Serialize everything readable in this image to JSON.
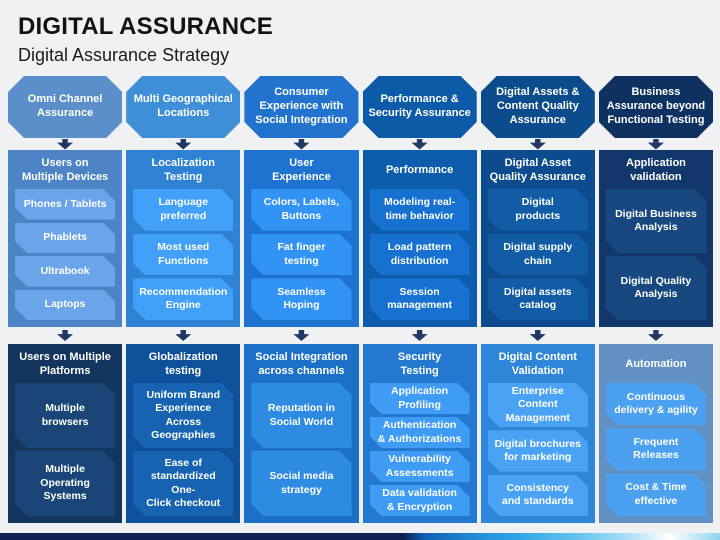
{
  "title": "DIGITAL ASSURANCE",
  "subtitle": "Digital Assurance Strategy",
  "arrow_color": "#1f3864",
  "background_color": "#f0f1f2",
  "footer_bar_colors": [
    "#0d2152",
    "#0d2152",
    "#1160b4",
    "#1f86d4",
    "#30a5e6",
    "#63c3ef",
    "#a8def7",
    "#ffffff",
    "#8fd3f0"
  ],
  "columns": [
    {
      "octagon_label": "Omni Channel\nAssurance",
      "octagon_color": "#5a8fca",
      "mid": {
        "title": "Users on\nMultiple Devices",
        "bg": "#4c84c5",
        "item_bg": "#6aa5ea",
        "items": [
          "Phones / Tablets",
          "Phablets",
          "Ultrabook",
          "Laptops"
        ]
      },
      "bottom": {
        "title": "Users on Multiple\nPlatforms",
        "bg": "#14355e",
        "item_bg": "#1c4577",
        "items": [
          "Multiple\nbrowsers",
          "Multiple Operating\nSystems"
        ]
      }
    },
    {
      "octagon_label": "Multi Geographical\nLocations",
      "octagon_color": "#3e8ed8",
      "mid": {
        "title": "Localization\nTesting",
        "bg": "#2f81d3",
        "item_bg": "#41a0f7",
        "items": [
          "Language\npreferred",
          "Most used\nFunctions",
          "Recommendation\nEngine"
        ]
      },
      "bottom": {
        "title": "Globalization\ntesting",
        "bg": "#0e509a",
        "item_bg": "#1763b2",
        "items": [
          "Uniform Brand\nExperience Across\nGeographies",
          "Ease of\nstandardized One-\nClick checkout"
        ]
      }
    },
    {
      "octagon_label": "Consumer\nExperience with\nSocial Integration",
      "octagon_color": "#2173ce",
      "mid": {
        "title": "User\nExperience",
        "bg": "#1e73d0",
        "item_bg": "#3193f3",
        "items": [
          "Colors, Labels,\nButtons",
          "Fat finger\ntesting",
          "Seamless\nHoping"
        ]
      },
      "bottom": {
        "title": "Social Integration\nacross channels",
        "bg": "#1c70c8",
        "item_bg": "#2e8be2",
        "items": [
          "Reputation in\nSocial World",
          "Social media\nstrategy"
        ]
      }
    },
    {
      "octagon_label": "Performance &\nSecurity Assurance",
      "octagon_color": "#0d5aa7",
      "mid": {
        "title": "Performance",
        "bg": "#0e5cac",
        "item_bg": "#1671d0",
        "items": [
          "Modeling real-\ntime behavior",
          "Load pattern\ndistribution",
          "Session\nmanagement"
        ]
      },
      "bottom": {
        "title": "Security\nTesting",
        "bg": "#2578d0",
        "item_bg": "#3e9cf4",
        "items": [
          "Application\nProfiling",
          "Authentication\n& Authorizations",
          "Vulnerability\nAssessments",
          "Data validation\n& Encryption"
        ]
      }
    },
    {
      "octagon_label": "Digital Assets &\nContent Quality\nAssurance",
      "octagon_color": "#0c4b8c",
      "mid": {
        "title": "Digital Asset\nQuality Assurance",
        "bg": "#0c4c8e",
        "item_bg": "#115ca4",
        "items": [
          "Digital\nproducts",
          "Digital supply\nchain",
          "Digital assets\ncatalog"
        ]
      },
      "bottom": {
        "title": "Digital Content\nValidation",
        "bg": "#2f86d9",
        "item_bg": "#4aa2f4",
        "items": [
          "Enterprise Content\nManagement",
          "Digital brochures\nfor marketing",
          "Consistency\nand standards"
        ]
      }
    },
    {
      "octagon_label": "Business\nAssurance beyond\nFunctional Testing",
      "octagon_color": "#0f3161",
      "mid": {
        "title": "Application\nvalidation",
        "bg": "#12386b",
        "item_bg": "#174880",
        "items": [
          "Digital Business\nAnalysis",
          "Digital Quality\nAnalysis"
        ]
      },
      "bottom": {
        "title": "Automation",
        "bg": "#6190c2",
        "item_bg": "#4ba0ef",
        "items": [
          "Continuous\ndelivery & agility",
          "Frequent\nReleases",
          "Cost & Time\neffective"
        ]
      }
    }
  ]
}
